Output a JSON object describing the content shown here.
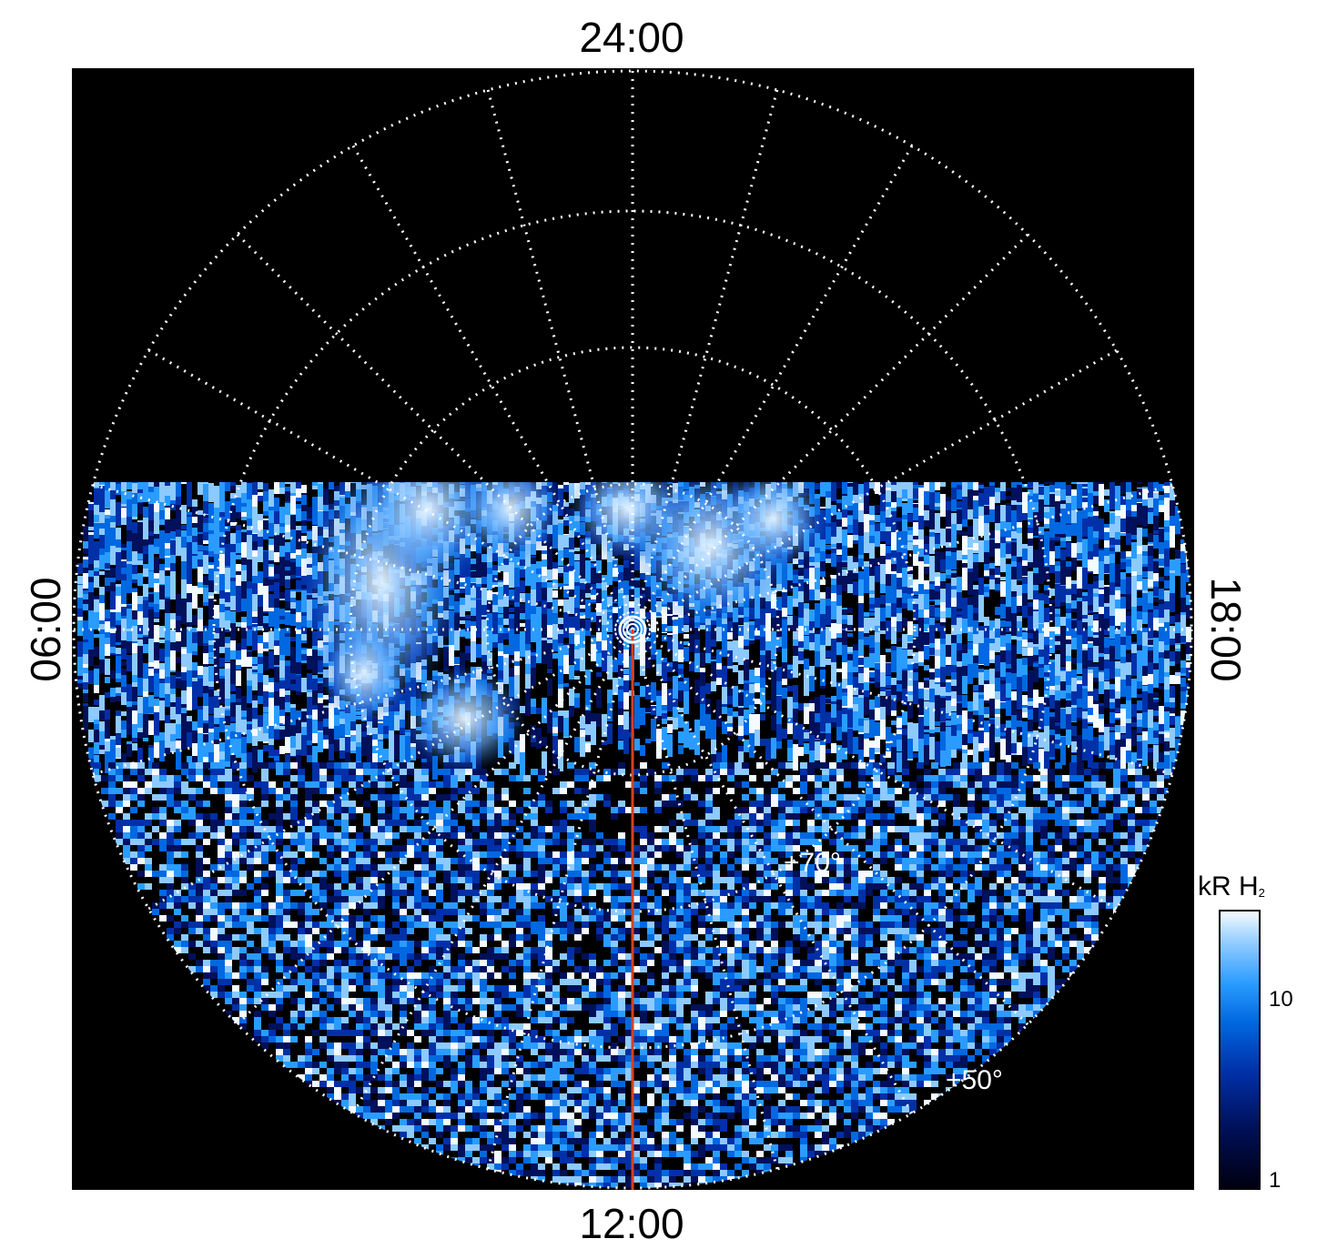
{
  "local_time_labels": {
    "top": "24:00",
    "bottom": "12:00",
    "left": "06:00",
    "right": "18:00"
  },
  "latitude_labels": {
    "inner": "+70°",
    "outer": "+50°"
  },
  "colorbar": {
    "title_main": "kR H",
    "title_sub": "2",
    "ticks": [
      "10",
      "1"
    ],
    "colors": [
      "#000010",
      "#00105a",
      "#0030a8",
      "#0068e0",
      "#2a9cff",
      "#8ccaff",
      "#f4fbff"
    ]
  },
  "colors": {
    "background": "#000000",
    "grid": "#ffffff",
    "meridian_line": "#d8401c"
  }
}
